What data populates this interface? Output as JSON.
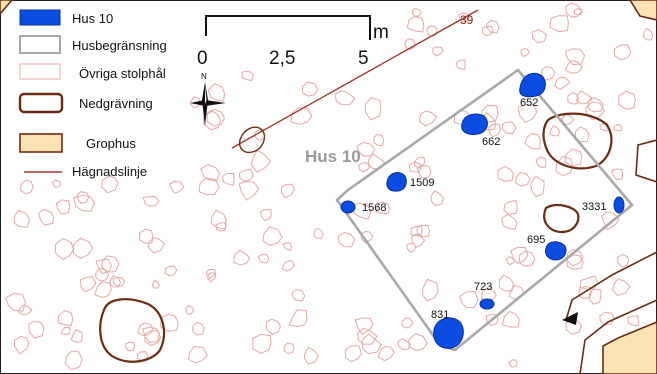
{
  "legend": {
    "items": [
      {
        "label": "Hus 10",
        "symbol": "feature"
      },
      {
        "label": "Husbegränsning",
        "symbol": "boundary"
      },
      {
        "label": "Övriga stolphål",
        "symbol": "posthole"
      },
      {
        "label": "Nedgrävning",
        "symbol": "pit"
      },
      {
        "label": "Grophus",
        "symbol": "grophus"
      },
      {
        "label": "Hägnadslinje",
        "symbol": "fence"
      }
    ]
  },
  "scale_bar": {
    "unit": "m",
    "ticks": [
      "0",
      "2,5",
      "5"
    ]
  },
  "north_arrow": {
    "label": "N"
  },
  "house_label": "Hus 10",
  "fence_label": "39",
  "features": [
    "652",
    "662",
    "1509",
    "1568",
    "3331",
    "695",
    "723",
    "831"
  ],
  "colors": {
    "feature": "#0a4de0",
    "posthole": "#e6a8a4",
    "pit": "#6b2b12",
    "grophus": "#fbe4b4",
    "fence": "#a0342a",
    "boundary": "#a8a8a8"
  }
}
